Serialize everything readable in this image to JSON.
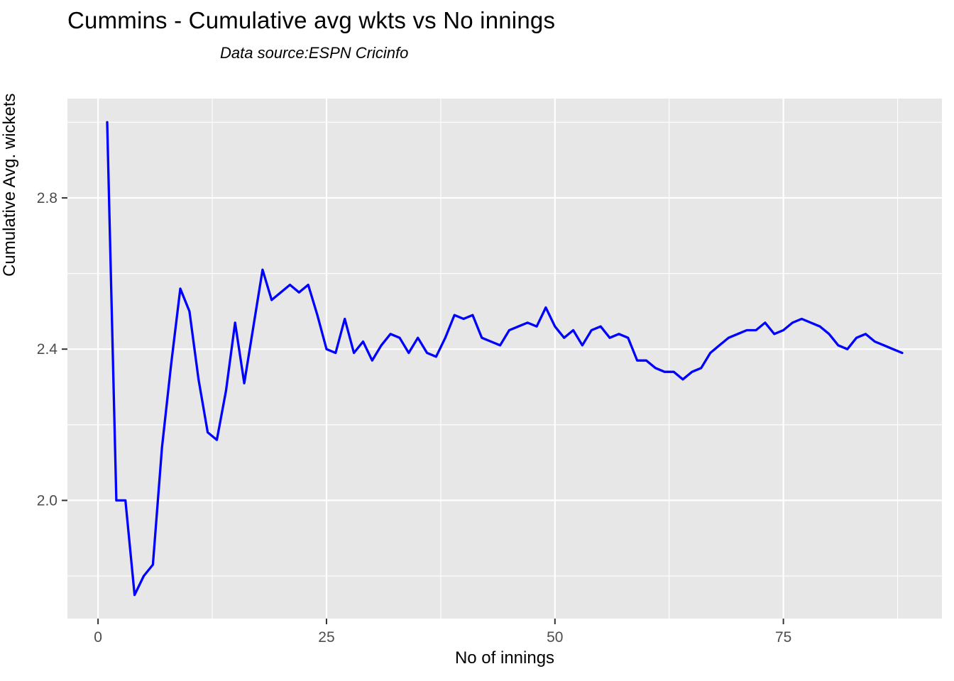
{
  "page": {
    "background": "#FFFFFF"
  },
  "header": {
    "title": "Cummins - Cumulative avg wkts vs No innings",
    "subtitle": "Data source:ESPN Cricinfo"
  },
  "chart_data": {
    "type": "line",
    "title": "Cummins - Cumulative avg wkts vs No innings",
    "subtitle": "Data source:ESPN Cricinfo",
    "xlabel": "No of innings",
    "ylabel": "Cumulative Avg. wickets",
    "series_name": "cumulative-avg-wickets",
    "x": [
      1,
      2,
      3,
      4,
      5,
      6,
      7,
      8,
      9,
      10,
      11,
      12,
      13,
      14,
      15,
      16,
      17,
      18,
      19,
      20,
      21,
      22,
      23,
      24,
      25,
      26,
      27,
      28,
      29,
      30,
      31,
      32,
      33,
      34,
      35,
      36,
      37,
      38,
      39,
      40,
      41,
      42,
      43,
      44,
      45,
      46,
      47,
      48,
      49,
      50,
      51,
      52,
      53,
      54,
      55,
      56,
      57,
      58,
      59,
      60,
      61,
      62,
      63,
      64,
      65,
      66,
      67,
      68,
      69,
      70,
      71,
      72,
      73,
      74,
      75,
      76,
      77,
      78,
      79,
      80,
      81,
      82,
      83,
      84,
      85,
      86,
      87,
      88
    ],
    "values": [
      3.0,
      2.0,
      2.0,
      1.75,
      1.8,
      1.83,
      2.14,
      2.36,
      2.56,
      2.5,
      2.32,
      2.18,
      2.16,
      2.29,
      2.47,
      2.31,
      2.46,
      2.61,
      2.53,
      2.55,
      2.57,
      2.55,
      2.57,
      2.49,
      2.4,
      2.39,
      2.48,
      2.39,
      2.42,
      2.37,
      2.41,
      2.44,
      2.43,
      2.39,
      2.43,
      2.39,
      2.38,
      2.43,
      2.49,
      2.48,
      2.49,
      2.43,
      2.42,
      2.41,
      2.45,
      2.46,
      2.47,
      2.46,
      2.51,
      2.46,
      2.43,
      2.45,
      2.41,
      2.45,
      2.46,
      2.43,
      2.44,
      2.43,
      2.37,
      2.37,
      2.35,
      2.34,
      2.34,
      2.32,
      2.34,
      2.35,
      2.39,
      2.41,
      2.43,
      2.44,
      2.45,
      2.45,
      2.47,
      2.44,
      2.45,
      2.47,
      2.48,
      2.47,
      2.46,
      2.44,
      2.41,
      2.4,
      2.43,
      2.44,
      2.42,
      2.41,
      2.4,
      2.39
    ],
    "x_ticks": [
      0,
      25,
      50,
      75
    ],
    "x_minor_ticks": [
      12.5,
      37.5,
      62.5,
      87.5
    ],
    "y_ticks": [
      2.0,
      2.4,
      2.8
    ],
    "y_minor_ticks": [
      1.8,
      2.2,
      2.6,
      3.0
    ],
    "xlim": [
      -3.35,
      92.35
    ],
    "ylim": [
      1.6875,
      3.0625
    ],
    "grid": true,
    "legend_position": "none",
    "line_color": "#0000FF",
    "panel_color": "#E7E7E7",
    "grid_color": "#FFFFFF",
    "tick_color": "#333333",
    "tick_label_color": "#4D4D4D"
  }
}
